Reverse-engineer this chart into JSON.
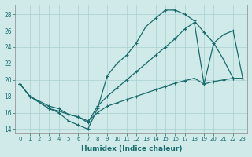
{
  "bg_color": "#d0eaea",
  "grid_color": "#a8d0d0",
  "line_color": "#1a6b6b",
  "xlabel": "Humidex (Indice chaleur)",
  "xlim": [
    -0.5,
    23.5
  ],
  "ylim": [
    13.5,
    29.2
  ],
  "xticks": [
    0,
    1,
    2,
    3,
    4,
    5,
    6,
    7,
    8,
    9,
    10,
    11,
    12,
    13,
    14,
    15,
    16,
    17,
    18,
    19,
    20,
    21,
    22,
    23
  ],
  "yticks": [
    14,
    16,
    18,
    20,
    22,
    24,
    26,
    28
  ],
  "curve1_x": [
    0,
    1,
    3,
    4,
    5,
    6,
    7,
    8,
    9,
    10,
    11,
    12,
    13,
    14,
    15,
    16,
    17,
    18,
    19,
    20,
    21,
    22
  ],
  "curve1_y": [
    19.5,
    18.0,
    16.5,
    16.0,
    15.0,
    14.5,
    14.0,
    16.5,
    20.5,
    22.0,
    23.0,
    24.5,
    26.5,
    27.5,
    28.5,
    28.5,
    28.0,
    27.2,
    25.8,
    24.5,
    22.5,
    20.2
  ],
  "curve2_x": [
    0,
    1,
    3,
    4,
    5,
    6,
    7,
    8,
    9,
    10,
    11,
    12,
    13,
    14,
    15,
    16,
    17,
    18,
    19,
    20,
    21,
    22,
    23
  ],
  "curve2_y": [
    19.5,
    18.0,
    16.8,
    16.5,
    15.8,
    15.5,
    14.8,
    16.8,
    18.0,
    19.0,
    20.0,
    21.0,
    22.0,
    23.0,
    24.0,
    25.0,
    26.2,
    27.0,
    19.5,
    24.5,
    25.5,
    26.0,
    20.2
  ],
  "curve3_x": [
    0,
    1,
    3,
    4,
    5,
    6,
    7,
    8,
    9,
    10,
    11,
    12,
    13,
    14,
    15,
    16,
    17,
    18,
    19,
    20,
    21,
    22,
    23
  ],
  "curve3_y": [
    19.5,
    18.0,
    16.5,
    16.2,
    15.8,
    15.5,
    15.0,
    16.0,
    16.8,
    17.2,
    17.6,
    18.0,
    18.4,
    18.8,
    19.2,
    19.6,
    19.9,
    20.2,
    19.5,
    19.8,
    20.0,
    20.2,
    20.2
  ]
}
